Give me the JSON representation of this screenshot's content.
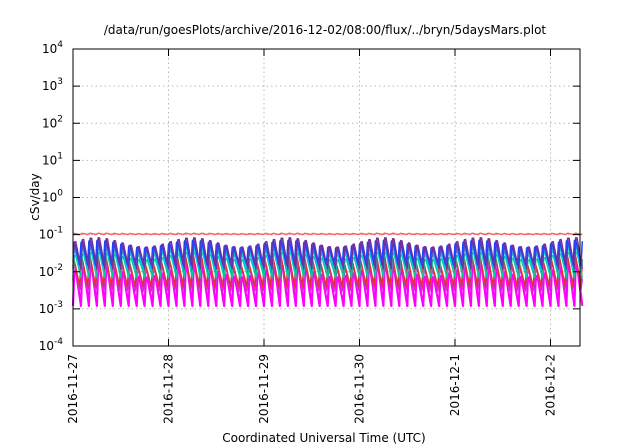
{
  "chart_data": {
    "type": "line",
    "title": "/data/run/goesPlots/archive/2016-12-02/08:00/flux/../bryn/5daysMars.plot",
    "xlabel": "Coordinated Universal Time (UTC)",
    "ylabel": "cSv/day",
    "y_scale": "log",
    "ylim": [
      0.0001,
      10000
    ],
    "y_ticks": [
      {
        "base": "10",
        "exp": "-4",
        "value": 0.0001
      },
      {
        "base": "10",
        "exp": "-3",
        "value": 0.001
      },
      {
        "base": "10",
        "exp": "-2",
        "value": 0.01
      },
      {
        "base": "10",
        "exp": "-1",
        "value": 0.1
      },
      {
        "base": "10",
        "exp": "0",
        "value": 1
      },
      {
        "base": "10",
        "exp": "1",
        "value": 10
      },
      {
        "base": "10",
        "exp": "2",
        "value": 100
      },
      {
        "base": "10",
        "exp": "3",
        "value": 1000
      },
      {
        "base": "10",
        "exp": "4",
        "value": 10000
      }
    ],
    "x_ticks": [
      "2016-11-27",
      "2016-11-28",
      "2016-11-29",
      "2016-11-30",
      "2016-12-1",
      "2016-12-2"
    ],
    "xlim": [
      "2016-11-27 00:00",
      "2016-12-02 08:00"
    ],
    "grid": true,
    "legend": "none",
    "oscillation_period_hours": 2,
    "series": [
      {
        "color": "#ff00ff",
        "peak": 0.025,
        "trough": 0.0012
      },
      {
        "color": "#cc33cc",
        "peak": 0.03,
        "trough": 0.0025
      },
      {
        "color": "#e0303a",
        "peak": 0.035,
        "trough": 0.004
      },
      {
        "color": "#00cc99",
        "peak": 0.045,
        "trough": 0.007
      },
      {
        "color": "#00c8e6",
        "peak": 0.06,
        "trough": 0.01
      },
      {
        "color": "#2040ff",
        "peak": 0.1,
        "trough": 0.015
      },
      {
        "color": "#7030a0",
        "peak": 0.12,
        "trough": 0.012
      },
      {
        "color": "#ff6060",
        "peak": 0.11,
        "trough": 0.1
      }
    ]
  }
}
